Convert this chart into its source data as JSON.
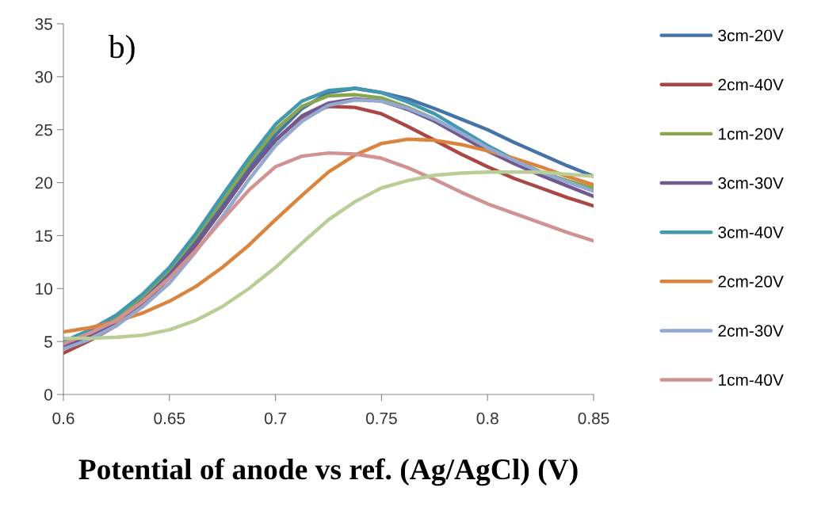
{
  "chart_data": {
    "type": "line",
    "x": [
      0.6,
      0.6125,
      0.625,
      0.6375,
      0.65,
      0.6625,
      0.675,
      0.6875,
      0.7,
      0.7125,
      0.725,
      0.7375,
      0.75,
      0.7625,
      0.775,
      0.7875,
      0.8,
      0.8125,
      0.825,
      0.8375,
      0.85
    ],
    "series": [
      {
        "name": "3cm-20V",
        "color": "#4572a7",
        "values": [
          4.5,
          5.6,
          7,
          9,
          11.5,
          14.6,
          18,
          21.4,
          24.5,
          27,
          28.5,
          28.9,
          28.5,
          27.9,
          27,
          26,
          25,
          23.8,
          22.7,
          21.6,
          20.6
        ]
      },
      {
        "name": "2cm-40V",
        "color": "#aa4643",
        "values": [
          3.9,
          5.1,
          6.5,
          8.6,
          11,
          14.1,
          17.5,
          21,
          24,
          26.2,
          27.2,
          27.1,
          26.5,
          25.3,
          24,
          22.7,
          21.5,
          20.4,
          19.5,
          18.6,
          17.8
        ]
      },
      {
        "name": "1cm-20V",
        "color": "#89a54e",
        "values": [
          4.8,
          6,
          7.3,
          9.3,
          11.8,
          14.9,
          18.3,
          21.8,
          25,
          27.2,
          28.2,
          28.3,
          28,
          27.1,
          26,
          24.6,
          23.3,
          22.1,
          21,
          20.2,
          19.5
        ]
      },
      {
        "name": "3cm-30V",
        "color": "#71588f",
        "values": [
          4.5,
          5.6,
          6.8,
          8.8,
          11.2,
          14.2,
          17.5,
          21,
          24,
          26.3,
          27.5,
          27.9,
          27.7,
          26.9,
          25.8,
          24.4,
          23,
          21.8,
          20.7,
          19.7,
          18.7
        ]
      },
      {
        "name": "3cm-40V",
        "color": "#4198af",
        "values": [
          5,
          6.1,
          7.5,
          9.5,
          12,
          15.2,
          18.8,
          22.3,
          25.5,
          27.7,
          28.7,
          28.9,
          28.5,
          27.6,
          26.5,
          25,
          23.5,
          22.2,
          21,
          20.1,
          19.2
        ]
      },
      {
        "name": "2cm-20V",
        "color": "#db843d",
        "values": [
          5.9,
          6.3,
          6.9,
          7.7,
          8.8,
          10.2,
          12,
          14.1,
          16.5,
          18.8,
          21,
          22.6,
          23.7,
          24.1,
          24,
          23.6,
          23,
          22.3,
          21.5,
          20.6,
          19.8
        ]
      },
      {
        "name": "2cm-30V",
        "color": "#93a9cf",
        "values": [
          4.3,
          5.2,
          6.5,
          8.3,
          10.5,
          13.5,
          16.8,
          20.3,
          23.5,
          25.8,
          27.3,
          27.8,
          27.7,
          27,
          26,
          24.7,
          23.3,
          22.1,
          21,
          20.1,
          19.2
        ]
      },
      {
        "name": "1cm-40V",
        "color": "#d19392",
        "values": [
          4.8,
          5.8,
          7,
          8.8,
          11,
          13.6,
          16.5,
          19.3,
          21.5,
          22.5,
          22.8,
          22.7,
          22.3,
          21.4,
          20.3,
          19.1,
          18,
          17.1,
          16.2,
          15.3,
          14.5
        ]
      },
      {
        "color": "#b9cd96",
        "values": [
          5.3,
          5.3,
          5.4,
          5.6,
          6.1,
          7,
          8.3,
          10,
          12,
          14.3,
          16.5,
          18.2,
          19.5,
          20.2,
          20.7,
          20.9,
          21,
          21,
          21,
          20.8,
          20.6
        ]
      }
    ],
    "xlabel": "Potential of anode vs ref. (Ag/AgCl) (V)",
    "annotations": [
      "b)"
    ],
    "xlim": [
      0.6,
      0.85
    ],
    "xticks": [
      {
        "value": 0.6,
        "label": "0.6"
      },
      {
        "value": 0.65,
        "label": "0.65"
      },
      {
        "value": 0.7,
        "label": "0.7"
      },
      {
        "value": 0.75,
        "label": "0.75"
      },
      {
        "value": 0.8,
        "label": "0.8"
      },
      {
        "value": 0.85,
        "label": "0.85"
      }
    ],
    "ylim": [
      0,
      35
    ],
    "yticks": [
      0,
      5,
      10,
      15,
      20,
      25,
      30,
      35
    ],
    "grid": false,
    "legend": "right",
    "marker": "none",
    "line_style": "solid"
  }
}
